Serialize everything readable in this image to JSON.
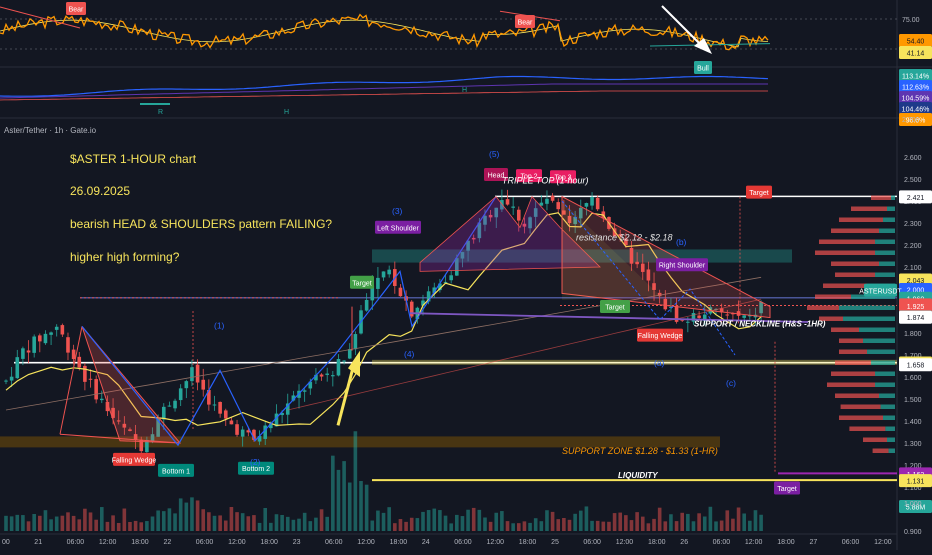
{
  "symbol_title": "Aster/Tether · 1h · Gate.io",
  "annotations": {
    "title": "$ASTER   1-HOUR chart",
    "date": "26.09.2025",
    "question1": "bearish HEAD & SHOULDERS pattern FAILING?",
    "question2": "higher high forming?",
    "triple_top": "TRIPLE TOP (1-hour)",
    "resistance": "resistance $2.12 - $2.18",
    "support_neckline": "SUPPORT / NECKLINE (H&S -1HR)",
    "support_zone": "SUPPORT ZONE $1.28 - $1.33 (1-HR)",
    "liquidity": "LIQUIDITY"
  },
  "labels": {
    "head": "Head",
    "top2": "Top 2",
    "top3": "Top 3",
    "left_shoulder": "Left Shoulder",
    "right_shoulder": "Right Shoulder",
    "target": "Target",
    "falling_wedge": "Falling Wedge",
    "bottom1": "Bottom 1",
    "bottom2": "Bottom 2",
    "wave1": "(1)",
    "wave2": "(2)",
    "wave3": "(3)",
    "wave4": "(4)",
    "wave5": "(5)",
    "wave_a": "(a)",
    "wave_b": "(b)",
    "wave_c": "(c)"
  },
  "oscillator": {
    "bear_label": "Bear",
    "bull_label": "Bull",
    "ticks": [
      "75.00",
      "25.00"
    ],
    "badges": [
      {
        "text": "54.40",
        "color": "#ff9800"
      },
      {
        "text": "41.14",
        "color": "#f7e45c"
      }
    ],
    "r_label": "R",
    "h_label": "H"
  },
  "indicator2": {
    "ticks": [
      "2.700"
    ],
    "badges": [
      {
        "text": "113.14%",
        "color": "#26a69a"
      },
      {
        "text": "112.63%",
        "color": "#2962ff"
      },
      {
        "text": "104.59%",
        "color": "#5e35b1"
      },
      {
        "text": "104.46%",
        "color": "#1e3a8a"
      },
      {
        "text": "96.6%",
        "color": "#ff9800"
      }
    ]
  },
  "price_axis": {
    "ticks": [
      "2.600",
      "2.500",
      "2.400",
      "2.300",
      "2.200",
      "2.100",
      "2.000",
      "1.900",
      "1.800",
      "1.700",
      "1.600",
      "1.500",
      "1.400",
      "1.300",
      "1.200",
      "1.100",
      "1.000",
      "0.900"
    ],
    "badges": [
      {
        "text": "2.421",
        "bg": "#ffffff",
        "fg": "#131722"
      },
      {
        "text": "2.043",
        "bg": "#f7e45c",
        "fg": "#131722"
      },
      {
        "text": "2.000",
        "bg": "#2962ff",
        "fg": "#ffffff"
      },
      {
        "text": "ASTERUSDT",
        "bg": "#26a69a",
        "fg": "#ffffff"
      },
      {
        "text": "1.960",
        "bg": "#26a69a",
        "fg": "#ffffff"
      },
      {
        "text": "1.930",
        "bg": "#ef5350",
        "fg": "#ffffff"
      },
      {
        "text": "1.925",
        "bg": "#ef5350",
        "fg": "#ffffff"
      },
      {
        "text": "1.875",
        "bg": "#26a69a",
        "fg": "#ffffff"
      },
      {
        "text": "1.874",
        "bg": "#ffffff",
        "fg": "#131722"
      },
      {
        "text": "1.666",
        "bg": "#f7e45c",
        "fg": "#131722"
      },
      {
        "text": "1.658",
        "bg": "#ffffff",
        "fg": "#131722"
      },
      {
        "text": "1.162",
        "bg": "#9c27b0",
        "fg": "#ffffff"
      },
      {
        "text": "1.131",
        "bg": "#f7e45c",
        "fg": "#131722"
      },
      {
        "text": "5.88M",
        "bg": "#26a69a",
        "fg": "#ffffff"
      }
    ]
  },
  "time_axis": [
    "00",
    "21",
    "06:00",
    "12:00",
    "18:00",
    "22",
    "06:00",
    "12:00",
    "18:00",
    "23",
    "06:00",
    "12:00",
    "18:00",
    "24",
    "06:00",
    "12:00",
    "18:00",
    "25",
    "06:00",
    "12:00",
    "18:00",
    "26",
    "06:00",
    "12:00",
    "18:00",
    "27",
    "06:00",
    "12:00"
  ],
  "colors": {
    "up": "#26a69a",
    "down": "#ef5350",
    "annotation": "#f7e45c",
    "wedge": "#ef5350",
    "blue": "#2962ff",
    "accent_purple": "#9c27b0"
  },
  "chart_data": {
    "type": "candlestick",
    "title": "$ASTER   1-HOUR chart",
    "symbol": "Aster/Tether",
    "interval": "1h",
    "ylim": [
      0.9,
      2.7
    ],
    "price_path": [
      {
        "x": "21 00:00",
        "y": 1.58
      },
      {
        "x": "21 03:00",
        "y": 1.72
      },
      {
        "x": "21 09:00",
        "y": 1.83
      },
      {
        "x": "21 14:00",
        "y": 1.6
      },
      {
        "x": "21 20:00",
        "y": 1.38
      },
      {
        "x": "22 00:00",
        "y": 1.29
      },
      {
        "x": "22 04:00",
        "y": 1.45
      },
      {
        "x": "22 09:00",
        "y": 1.62
      },
      {
        "x": "22 14:00",
        "y": 1.42
      },
      {
        "x": "22 20:00",
        "y": 1.31
      },
      {
        "x": "23 00:00",
        "y": 1.42
      },
      {
        "x": "23 05:00",
        "y": 1.55
      },
      {
        "x": "23 10:00",
        "y": 1.63
      },
      {
        "x": "23 13:00",
        "y": 1.72
      },
      {
        "x": "23 16:00",
        "y": 1.98
      },
      {
        "x": "23 20:00",
        "y": 2.08
      },
      {
        "x": "24 00:00",
        "y": 1.9
      },
      {
        "x": "24 06:00",
        "y": 2.05
      },
      {
        "x": "24 12:00",
        "y": 2.28
      },
      {
        "x": "24 16:00",
        "y": 2.42
      },
      {
        "x": "24 20:00",
        "y": 2.3
      },
      {
        "x": "25 00:00",
        "y": 2.41
      },
      {
        "x": "25 04:00",
        "y": 2.28
      },
      {
        "x": "25 08:00",
        "y": 2.42
      },
      {
        "x": "25 12:00",
        "y": 2.25
      },
      {
        "x": "25 16:00",
        "y": 2.1
      },
      {
        "x": "25 20:00",
        "y": 1.95
      },
      {
        "x": "26 00:00",
        "y": 1.85
      },
      {
        "x": "26 04:00",
        "y": 1.9
      },
      {
        "x": "26 08:00",
        "y": 1.88
      },
      {
        "x": "26 12:00",
        "y": 1.86
      },
      {
        "x": "26 14:00",
        "y": 1.93
      }
    ],
    "levels": [
      {
        "name": "Target",
        "value": 2.421
      },
      {
        "name": "resistance",
        "value": 2.15
      },
      {
        "name": "ASTERUSDT",
        "value": 1.96
      },
      {
        "name": "Neckline",
        "value": 1.874
      },
      {
        "name": "Support line",
        "value": 1.658
      },
      {
        "name": "SUPPORT ZONE",
        "range": [
          1.28,
          1.33
        ]
      },
      {
        "name": "LIQUIDITY",
        "value": 1.131
      },
      {
        "name": "Target",
        "value": 1.162
      }
    ]
  }
}
